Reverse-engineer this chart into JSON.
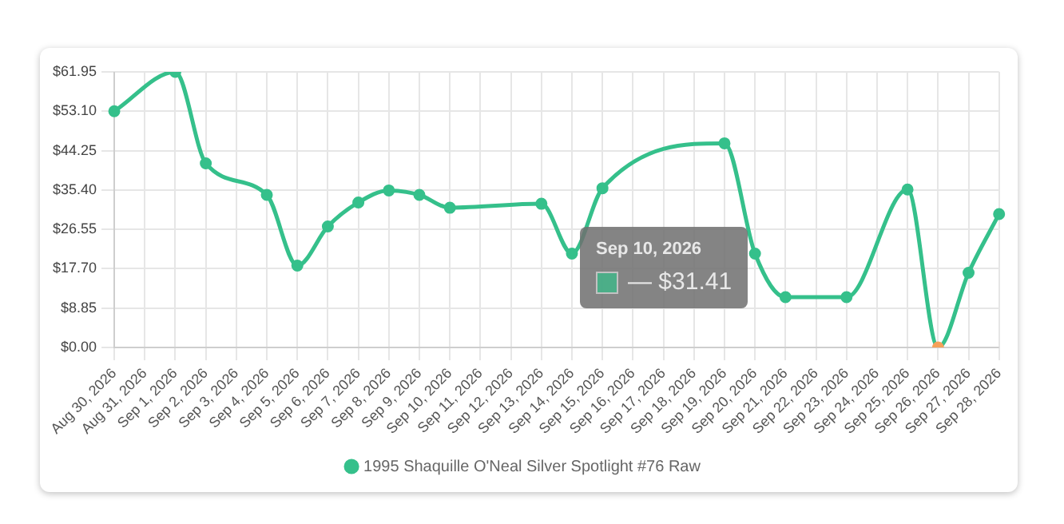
{
  "chart_data": {
    "type": "line",
    "categories": [
      "Aug 30, 2026",
      "Aug 31, 2026",
      "Sep 1, 2026",
      "Sep 2, 2026",
      "Sep 3, 2026",
      "Sep 4, 2026",
      "Sep 5, 2026",
      "Sep 6, 2026",
      "Sep 7, 2026",
      "Sep 8, 2026",
      "Sep 9, 2026",
      "Sep 10, 2026",
      "Sep 11, 2026",
      "Sep 12, 2026",
      "Sep 13, 2026",
      "Sep 14, 2026",
      "Sep 15, 2026",
      "Sep 16, 2026",
      "Sep 17, 2026",
      "Sep 18, 2026",
      "Sep 19, 2026",
      "Sep 20, 2026",
      "Sep 21, 2026",
      "Sep 22, 2026",
      "Sep 23, 2026",
      "Sep 24, 2026",
      "Sep 25, 2026",
      "Sep 26, 2026",
      "Sep 27, 2026",
      "Sep 28, 2026"
    ],
    "series": [
      {
        "name": "1995 Shaquille O'Neal Silver Spotlight #76 Raw",
        "color": "#35c08b",
        "values": [
          53.1,
          null,
          61.95,
          41.4,
          null,
          34.3,
          18.4,
          27.2,
          32.6,
          35.3,
          34.3,
          31.41,
          null,
          null,
          32.3,
          21.1,
          35.8,
          null,
          null,
          null,
          45.9,
          21.1,
          11.3,
          null,
          11.3,
          null,
          35.5,
          0,
          16.8,
          30.0
        ],
        "colors": [
          "#35c08b",
          "#35c08b",
          "#35c08b",
          "#35c08b",
          "#35c08b",
          "#35c08b",
          "#35c08b",
          "#35c08b",
          "#35c08b",
          "#35c08b",
          "#35c08b",
          "#35c08b",
          "#35c08b",
          "#35c08b",
          "#35c08b",
          "#35c08b",
          "#35c08b",
          "#35c08b",
          "#35c08b",
          "#35c08b",
          "#35c08b",
          "#35c08b",
          "#35c08b",
          "#35c08b",
          "#35c08b",
          "#35c08b",
          "#35c08b",
          "#f5a15a",
          "#35c08b",
          "#35c08b"
        ]
      }
    ],
    "ylim": [
      0,
      61.95
    ],
    "yticks": [
      {
        "value": 0,
        "label": "$0.00"
      },
      {
        "value": 8.85,
        "label": "$8.85"
      },
      {
        "value": 17.7,
        "label": "$17.70"
      },
      {
        "value": 26.55,
        "label": "$26.55"
      },
      {
        "value": 35.4,
        "label": "$35.40"
      },
      {
        "value": 44.25,
        "label": "$44.25"
      },
      {
        "value": 53.1,
        "label": "$53.10"
      },
      {
        "value": 61.95,
        "label": "$61.95"
      }
    ],
    "grid": true,
    "legend": "bottom",
    "marker": "circle",
    "line_style": "solid",
    "annotations": [
      "Sep 10, 2026",
      "— $31.41"
    ]
  }
}
